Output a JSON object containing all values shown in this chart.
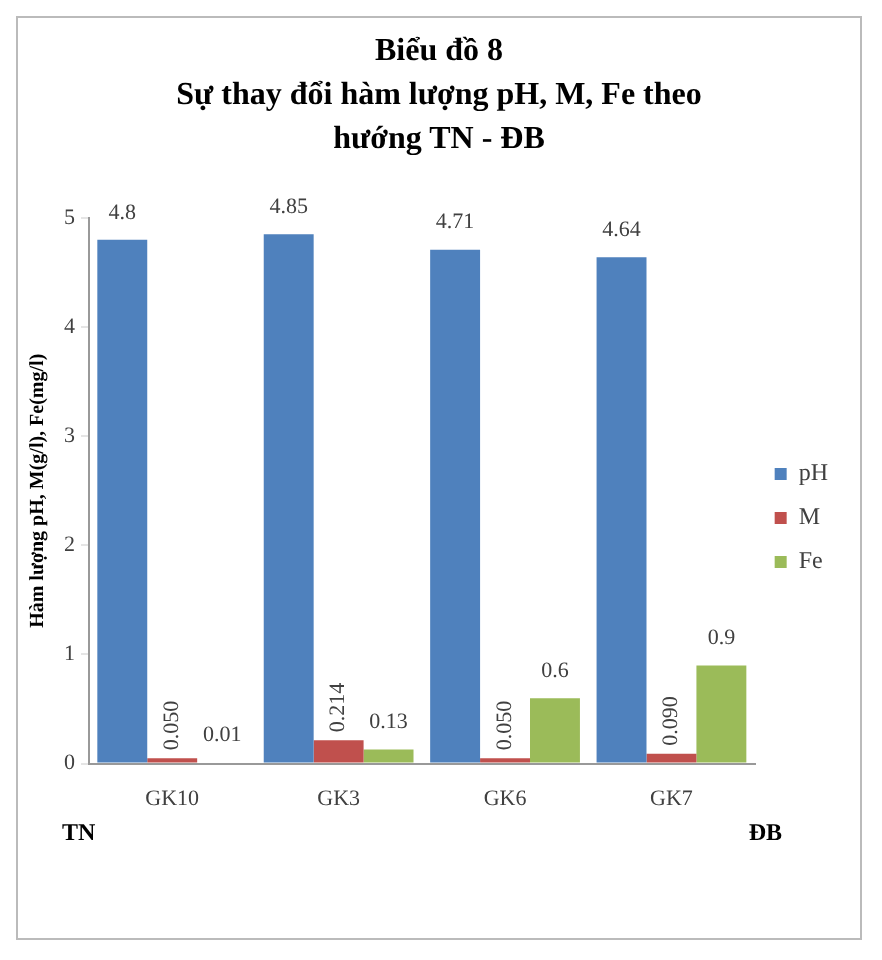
{
  "chart_data": {
    "type": "bar",
    "title": "Biểu đồ 8",
    "subtitle": "Sự thay đổi hàm lượng pH, M, Fe theo hướng TN - ĐB",
    "ylabel": "Hàm lượng pH, M(g/l), Fe(mg/l)",
    "categories": [
      "GK10",
      "GK3",
      "GK6",
      "GK7"
    ],
    "series": [
      {
        "name": "pH",
        "color": "#4f81bd",
        "values": [
          4.8,
          4.85,
          4.71,
          4.64
        ],
        "value_labels": [
          "4.8",
          "4.85",
          "4.71",
          "4.64"
        ]
      },
      {
        "name": "M",
        "color": "#c0504d",
        "values": [
          0.05,
          0.214,
          0.05,
          0.09
        ],
        "value_labels": [
          "0.050",
          "0.214",
          "0.050",
          "0.090"
        ]
      },
      {
        "name": "Fe",
        "color": "#9bbb59",
        "values": [
          0.01,
          0.13,
          0.6,
          0.9
        ],
        "value_labels": [
          "0.01",
          "0.13",
          "0.6",
          "0.9"
        ]
      }
    ],
    "ylim": [
      0,
      5
    ],
    "yticks": [
      0,
      1,
      2,
      3,
      4,
      5
    ],
    "grid": false,
    "legend": "right",
    "annotations": [
      "TN",
      "ĐB"
    ]
  }
}
